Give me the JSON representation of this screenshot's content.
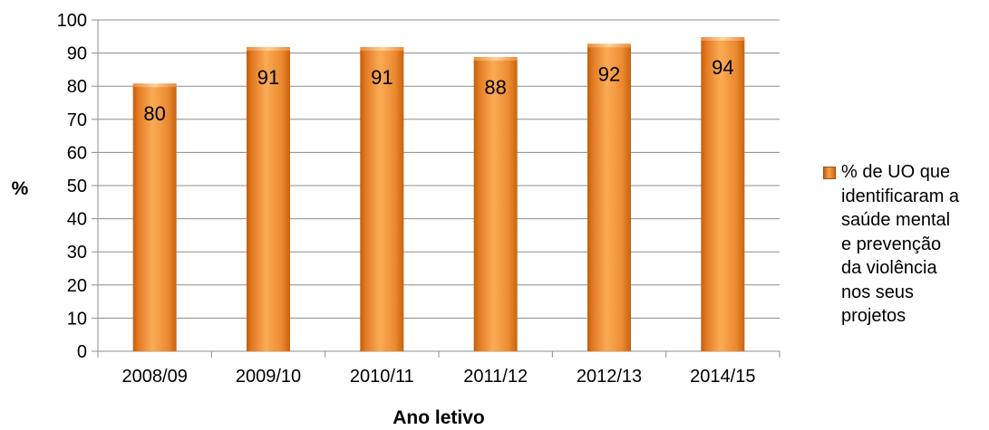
{
  "chart_data": {
    "type": "bar",
    "categories": [
      "2008/09",
      "2009/10",
      "2010/11",
      "2011/12",
      "2012/13",
      "2014/15"
    ],
    "series": [
      {
        "name": "% de UO que identificaram a saúde mental e prevenção da violência nos seus projetos",
        "values": [
          80,
          91,
          91,
          88,
          92,
          94
        ]
      }
    ],
    "data_labels": [
      "80",
      "91",
      "91",
      "88",
      "92",
      "94"
    ],
    "xlabel": "Ano letivo",
    "ylabel": "%",
    "ylim": [
      0,
      100
    ],
    "yticks": [
      0,
      10,
      20,
      30,
      40,
      50,
      60,
      70,
      80,
      90,
      100
    ],
    "grid": true,
    "legend_position": "right",
    "bar_color": "#f08a2c"
  },
  "legend": {
    "label_lines": [
      "% de UO que",
      "identificaram a",
      "saúde mental",
      "e prevenção",
      "da violência",
      "nos seus",
      "projetos"
    ]
  }
}
